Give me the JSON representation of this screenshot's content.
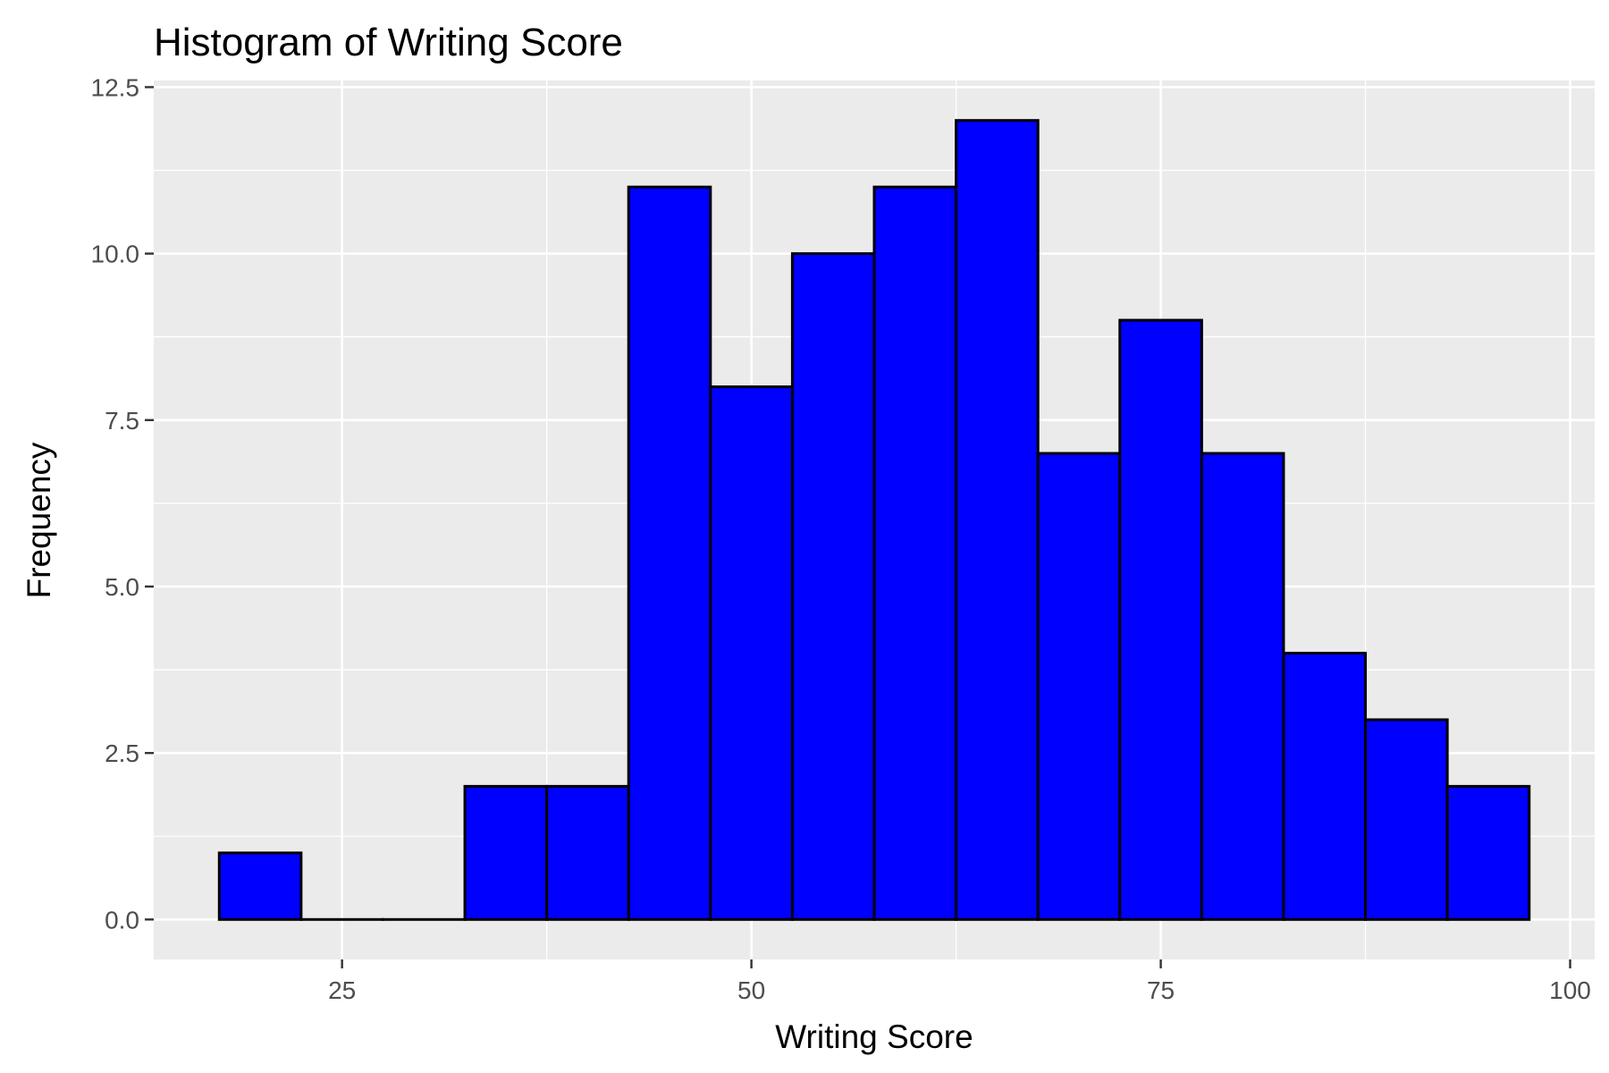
{
  "chart_data": {
    "type": "bar",
    "title": "Histogram of Writing Score",
    "xlabel": "Writing Score",
    "ylabel": "Frequency",
    "binwidth": 5,
    "bins": [
      {
        "start": 17.5,
        "end": 22.5,
        "count": 1
      },
      {
        "start": 22.5,
        "end": 27.5,
        "count": 0
      },
      {
        "start": 27.5,
        "end": 32.5,
        "count": 0
      },
      {
        "start": 32.5,
        "end": 37.5,
        "count": 2
      },
      {
        "start": 37.5,
        "end": 42.5,
        "count": 2
      },
      {
        "start": 42.5,
        "end": 47.5,
        "count": 11
      },
      {
        "start": 47.5,
        "end": 52.5,
        "count": 8
      },
      {
        "start": 52.5,
        "end": 57.5,
        "count": 10
      },
      {
        "start": 57.5,
        "end": 62.5,
        "count": 11
      },
      {
        "start": 62.5,
        "end": 67.5,
        "count": 12
      },
      {
        "start": 67.5,
        "end": 72.5,
        "count": 7
      },
      {
        "start": 72.5,
        "end": 77.5,
        "count": 9
      },
      {
        "start": 77.5,
        "end": 82.5,
        "count": 7
      },
      {
        "start": 82.5,
        "end": 87.5,
        "count": 4
      },
      {
        "start": 87.5,
        "end": 92.5,
        "count": 3
      },
      {
        "start": 92.5,
        "end": 97.5,
        "count": 2
      }
    ],
    "xlim": [
      13.5,
      101.5
    ],
    "ylim": [
      -0.6,
      12.6
    ],
    "x_ticks": [
      25,
      50,
      75,
      100
    ],
    "x_tick_labels": [
      "25",
      "50",
      "75",
      "100"
    ],
    "y_ticks": [
      0,
      2.5,
      5,
      7.5,
      10,
      12.5
    ],
    "y_tick_labels": [
      "0.0",
      "2.5",
      "5.0",
      "7.5",
      "10.0",
      "12.5"
    ],
    "grid": true,
    "legend": "none",
    "colors": {
      "bar_fill": "#0000ff",
      "bar_outline": "#000000",
      "panel_background": "#ebebeb",
      "grid": "#ffffff"
    }
  }
}
